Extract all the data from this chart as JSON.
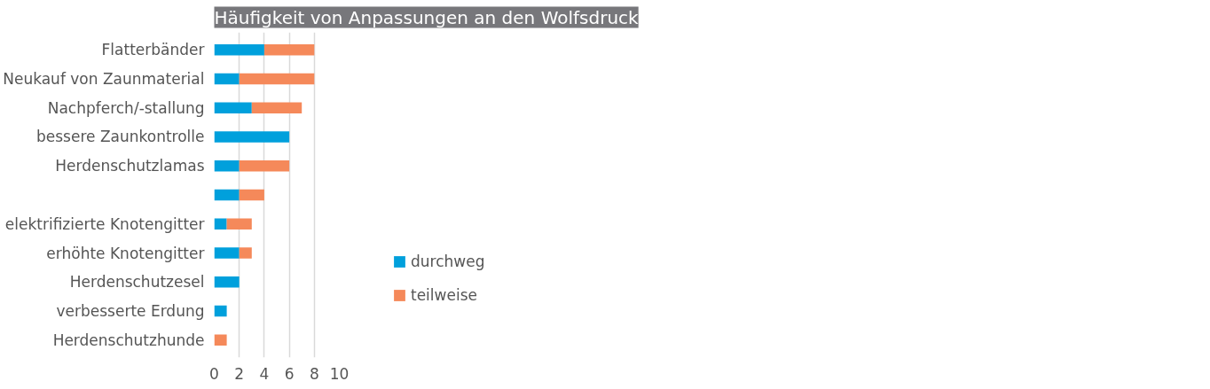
{
  "chart_data": {
    "type": "bar",
    "orientation": "horizontal",
    "stacked": true,
    "title": "Häufigkeit von Anpassungen an den Wolfsdruck",
    "categories": [
      "Flatterbänder",
      "Neukauf von Zaunmaterial",
      "Nachpferch/-stallung",
      "bessere Zaunkontrolle",
      "Herdenschutzlamas",
      null,
      "elektrifizierte Knotengitter",
      "erhöhte Knotengitter",
      "Herdenschutzesel",
      "verbesserte Erdung",
      "Herdenschutzhunde"
    ],
    "series": [
      {
        "name": "durchweg",
        "color": "#00a0dc",
        "values": [
          4,
          2,
          3,
          6,
          2,
          2,
          1,
          2,
          2,
          1,
          0
        ]
      },
      {
        "name": "teilweise",
        "color": "#f5895a",
        "values": [
          4,
          6,
          4,
          0,
          4,
          2,
          2,
          1,
          0,
          0,
          1
        ]
      }
    ],
    "xlim": [
      0,
      10
    ],
    "xticks": [
      0,
      2,
      4,
      6,
      8,
      10
    ],
    "grid": "x",
    "legend": "right"
  }
}
